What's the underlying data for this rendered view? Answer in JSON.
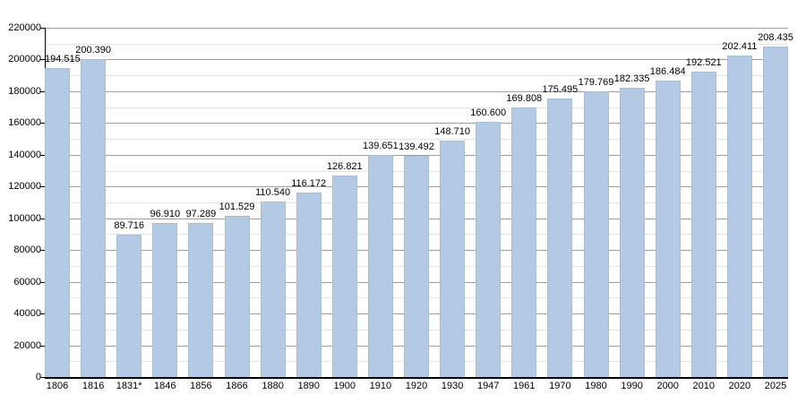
{
  "chart_data": {
    "type": "bar",
    "title": "",
    "xlabel": "",
    "ylabel": "",
    "categories": [
      "1806",
      "1816",
      "1831*",
      "1846",
      "1856",
      "1866",
      "1880",
      "1890",
      "1900",
      "1910",
      "1920",
      "1930",
      "1947",
      "1961",
      "1970",
      "1980",
      "1990",
      "2000",
      "2010",
      "2020",
      "2025"
    ],
    "values": [
      194515,
      200390,
      89716,
      96910,
      97289,
      101529,
      110540,
      116172,
      126821,
      139651,
      139492,
      148710,
      160600,
      169808,
      175495,
      179769,
      182335,
      186484,
      192521,
      202411,
      208435
    ],
    "value_labels": [
      "194.515",
      "200.390",
      "89.716",
      "96.910",
      "97.289",
      "101.529",
      "110.540",
      "116.172",
      "126.821",
      "139.651",
      "139.492",
      "148.710",
      "160.600",
      "169.808",
      "175.495",
      "179.769",
      "182.335",
      "186.484",
      "192.521",
      "202.411",
      "208.435"
    ],
    "ylim": [
      0,
      220000
    ],
    "y_major_step": 20000,
    "y_minor_step": 10000,
    "y_tick_labels": [
      "0",
      "20000",
      "40000",
      "60000",
      "80000",
      "100000",
      "120000",
      "140000",
      "160000",
      "180000",
      "200000",
      "220000"
    ],
    "grid": true,
    "legend": null,
    "bar_color": "#b3cae4",
    "bar_border_color": "#a6bedb",
    "major_grid_color": "#9e9e9e",
    "minor_grid_color": "#e4e4e4",
    "axis_color": "#000000",
    "text_color": "#000000"
  }
}
